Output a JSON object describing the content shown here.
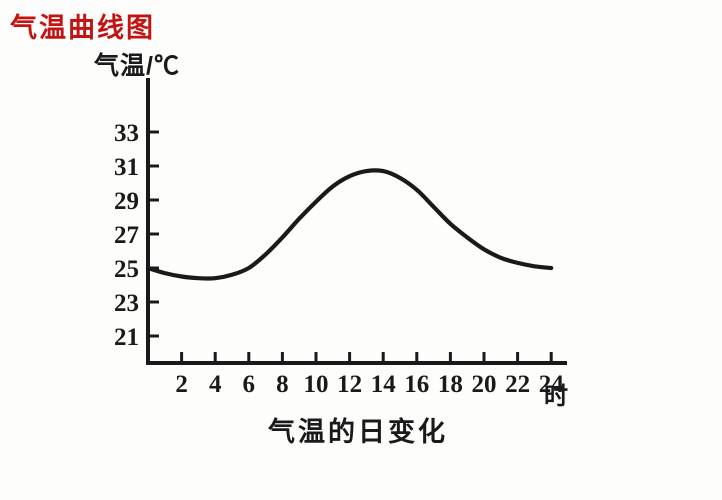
{
  "page": {
    "title": "气温曲线图"
  },
  "colors": {
    "title_red": "#c31312",
    "ink": "#1a1a1a",
    "background": "#fdfdfb"
  },
  "chart_data": {
    "type": "line",
    "title": "气温的日变化",
    "ylabel": "气温/℃",
    "xlabel": "时",
    "x_ticks": [
      2,
      4,
      6,
      8,
      10,
      12,
      14,
      16,
      18,
      20,
      22,
      24
    ],
    "y_ticks": [
      33,
      31,
      29,
      27,
      25,
      23,
      21
    ],
    "xlim": [
      0,
      24
    ],
    "ylim": [
      19.5,
      34.5
    ],
    "grid": false,
    "legend": "none",
    "line_color": "#1a1a1a",
    "series": [
      {
        "name": "气温",
        "x": [
          0,
          1,
          2,
          3,
          4,
          5,
          6,
          7,
          8,
          9,
          10,
          11,
          12,
          13,
          14,
          15,
          16,
          17,
          18,
          19,
          20,
          21,
          22,
          23,
          24
        ],
        "y": [
          25.0,
          24.7,
          24.5,
          24.4,
          24.4,
          24.6,
          25.0,
          25.8,
          26.8,
          27.9,
          28.9,
          29.8,
          30.4,
          30.7,
          30.7,
          30.3,
          29.6,
          28.6,
          27.6,
          26.8,
          26.1,
          25.6,
          25.3,
          25.1,
          25.0
        ]
      }
    ]
  }
}
